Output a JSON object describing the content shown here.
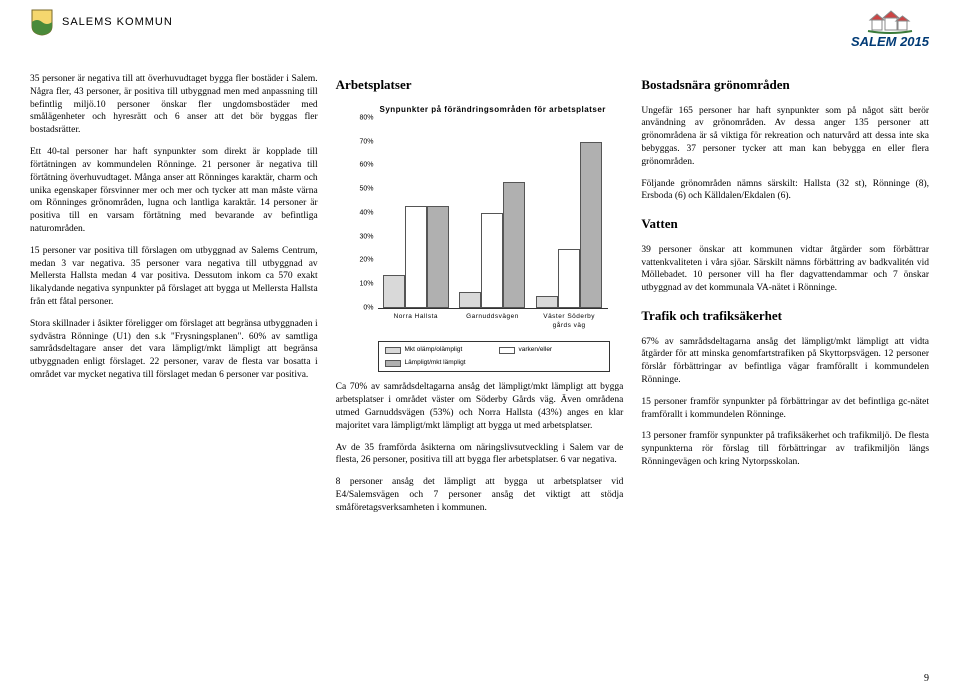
{
  "header": {
    "municipality": "SALEMS KOMMUN",
    "logo_text": "SALEM 2015"
  },
  "col1": {
    "p1": "35 personer är negativa till att överhuvudtaget bygga fler bostäder i Salem. Några fler, 43 personer, är positiva till utbyggnad men med anpassning till befintlig miljö.10 personer önskar fler ungdomsbostäder med smålägenheter och hyresrätt och 6 anser att det bör byggas fler bostadsrätter.",
    "p2": "Ett 40-tal personer har haft synpunkter som direkt är kopplade till förtätningen av kommundelen Rönninge. 21 personer är negativa till förtätning överhuvudtaget. Många anser att Rönninges karaktär, charm och unika egenskaper försvinner mer och mer och tycker att man måste värna om Rönninges grönområden, lugna och lantliga karaktär. 14 personer är positiva till en varsam förtätning med bevarande av befintliga naturområden.",
    "p3": "15 personer var positiva till förslagen om utbyggnad av Salems Centrum, medan 3 var negativa. 35 personer vara negativa till utbyggnad av Mellersta Hallsta medan 4 var positiva. Dessutom inkom ca 570 exakt likalydande negativa synpunkter på förslaget att bygga ut Mellersta Hallsta från ett fåtal personer.",
    "p4": "Stora skillnader i åsikter föreligger om förslaget att begränsa utbyggnaden i sydvästra Rönninge (U1) den s.k \"Frysningsplanen\". 60% av samtliga samrådsdeltagare anser det vara lämpligt/mkt lämpligt att begränsa utbyggnaden enligt förslaget. 22 personer, varav de flesta var bosatta i området var mycket negativa till förslaget medan 6 personer var positiva."
  },
  "col2": {
    "h_arbetsplatser": "Arbetsplatser",
    "chart": {
      "title": "Synpunkter på förändringsområden för arbetsplatser",
      "ymax": 80,
      "ytick_step": 10,
      "categories": [
        "Norra Hallsta",
        "Garnuddsvägen",
        "Väster Söderby gårds väg"
      ],
      "series": [
        {
          "label": "Mkt olämp/olämpligt",
          "color": "#d9d9d9",
          "values": [
            14,
            7,
            5
          ]
        },
        {
          "label": "varken/eller",
          "color": "#ffffff",
          "values": [
            43,
            40,
            25
          ]
        },
        {
          "label": "Lämpligt/mkt lämpligt",
          "color": "#b0b0b0",
          "values": [
            43,
            53,
            70
          ]
        }
      ]
    },
    "p1": "Ca 70% av samrådsdeltagarna ansåg det lämpligt/mkt lämpligt att bygga arbetsplatser i området väster om Söderby Gårds väg. Även områdena utmed Garnuddsvägen (53%) och Norra Hallsta (43%) anges en klar majoritet vara lämpligt/mkt lämpligt att bygga ut med arbetsplatser.",
    "p2": "Av de 35 framförda åsikterna om näringslivsutveckling i Salem var de flesta, 26 personer, positiva till att bygga fler arbetsplatser. 6 var negativa.",
    "p3": "8 personer ansåg det lämpligt att bygga ut arbetsplatser vid E4/Salemsvägen och 7 personer ansåg det viktigt att stödja småföretagsverksamheten i kommunen."
  },
  "col3": {
    "h_gron": "Bostadsnära grönområden",
    "p1": "Ungefär 165 personer har haft synpunkter som på något sätt berör användning av grönområden. Av dessa anger 135 personer att grönområdena är så viktiga för rekreation och naturvård att dessa inte ska bebyggas. 37 personer tycker att man kan bebygga en eller flera grönområden.",
    "p2": "Följande grönområden nämns särskilt: Hallsta (32 st), Rönninge (8), Ersboda (6) och Källdalen/Ekdalen (6).",
    "h_vatten": "Vatten",
    "p3": "39 personer önskar att kommunen vidtar åtgärder som förbättrar vattenkvaliteten i våra sjöar. Särskilt nämns förbättring av badkvalitén vid Möllebadet. 10 personer vill ha fler dagvattendammar och 7 önskar utbyggnad av det kommunala VA-nätet i Rönninge.",
    "h_trafik": "Trafik och trafiksäkerhet",
    "p4": "67% av samrådsdeltagarna ansåg det lämpligt/mkt lämpligt att vidta åtgärder för att minska genomfartstrafiken på Skyttorpsvägen. 12 personer förslår förbättringar av befintliga vägar framförallt i kommundelen Rönninge.",
    "p5": "15 personer framför synpunkter på förbättringar av det befintliga gc-nätet framförallt i kommundelen Rönninge.",
    "p6": "13 personer framför synpunkter på trafiksäkerhet och trafikmiljö. De flesta synpunkterna rör förslag till förbättringar av trafikmiljön längs Rönningevägen och kring Nytorpsskolan."
  },
  "page_number": "9"
}
